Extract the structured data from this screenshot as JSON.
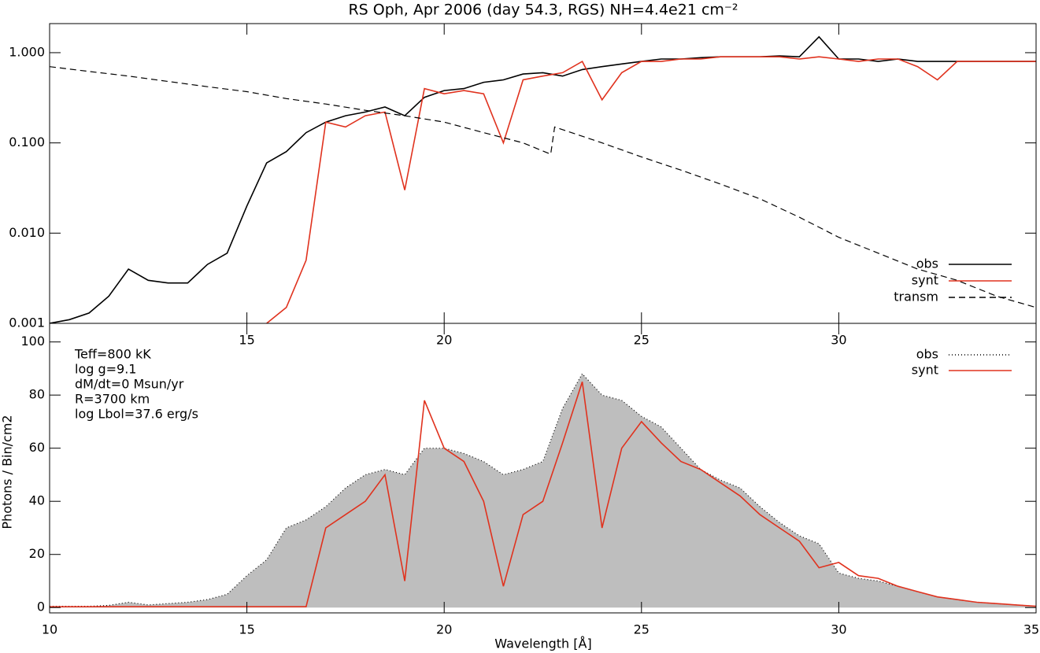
{
  "chart_data": [
    {
      "type": "line",
      "title": "RS Oph, Apr 2006 (day 54.3, RGS)  NH=4.4e21 cm⁻²",
      "log_y": true,
      "legend": "lower right",
      "x": [
        10,
        10.5,
        11,
        11.5,
        12,
        12.5,
        13,
        13.5,
        14,
        14.5,
        15,
        15.5,
        16,
        16.5,
        17,
        17.5,
        18,
        18.5,
        19,
        19.5,
        20,
        20.5,
        21,
        21.5,
        22,
        22.5,
        23,
        23.5,
        24,
        24.5,
        25,
        25.5,
        26,
        26.5,
        27,
        27.5,
        28,
        28.5,
        29,
        29.5,
        30,
        30.5,
        31,
        31.5,
        32,
        32.5,
        33,
        33.5,
        34,
        34.5,
        35
      ],
      "series": [
        {
          "name": "obs",
          "color": "#000000",
          "style": "solid",
          "values": [
            0.001,
            0.0011,
            0.0013,
            0.002,
            0.004,
            0.003,
            0.0028,
            0.0028,
            0.0045,
            0.006,
            0.02,
            0.06,
            0.08,
            0.13,
            0.17,
            0.2,
            0.22,
            0.25,
            0.2,
            0.32,
            0.38,
            0.4,
            0.47,
            0.5,
            0.58,
            0.6,
            0.55,
            0.65,
            0.7,
            0.75,
            0.8,
            0.85,
            0.85,
            0.88,
            0.9,
            0.9,
            0.9,
            0.92,
            0.9,
            1.5,
            0.85,
            0.85,
            0.8,
            0.85,
            0.8,
            0.8,
            0.8,
            0.8,
            0.8,
            0.8,
            0.8
          ]
        },
        {
          "name": "synt",
          "color": "#e0321e",
          "style": "solid",
          "values": [
            null,
            null,
            null,
            null,
            null,
            null,
            null,
            null,
            null,
            null,
            null,
            0.001,
            0.0015,
            0.005,
            0.17,
            0.15,
            0.2,
            0.22,
            0.03,
            0.4,
            0.35,
            0.38,
            0.35,
            0.1,
            0.5,
            0.55,
            0.6,
            0.8,
            0.3,
            0.6,
            0.8,
            0.8,
            0.85,
            0.85,
            0.9,
            0.9,
            0.9,
            0.9,
            0.85,
            0.9,
            0.85,
            0.8,
            0.85,
            0.85,
            0.7,
            0.5,
            0.8,
            0.8,
            0.8,
            0.8,
            0.8
          ]
        },
        {
          "name": "transm",
          "color": "#000000",
          "style": "dashed",
          "x": [
            10,
            11,
            12,
            13,
            14,
            15,
            16,
            17,
            18,
            19,
            20,
            21,
            22,
            22.7,
            22.8,
            24,
            25,
            26,
            27,
            28,
            29,
            30,
            31,
            32,
            33,
            34,
            35
          ],
          "values": [
            0.7,
            0.62,
            0.55,
            0.48,
            0.42,
            0.37,
            0.31,
            0.27,
            0.23,
            0.2,
            0.17,
            0.13,
            0.1,
            0.075,
            0.15,
            0.1,
            0.07,
            0.05,
            0.035,
            0.024,
            0.015,
            0.009,
            0.006,
            0.004,
            0.003,
            0.002,
            0.0015
          ]
        }
      ],
      "xlim": [
        10,
        35
      ],
      "xticks": [
        15,
        20,
        25,
        30
      ],
      "ylim": [
        0.001,
        2.1
      ],
      "yticks": [
        {
          "value": 0.001,
          "label": "0.001"
        },
        {
          "value": 0.01,
          "label": "0.010"
        },
        {
          "value": 0.1,
          "label": "0.100"
        },
        {
          "value": 1,
          "label": "1.000"
        }
      ]
    },
    {
      "type": "area",
      "x_label": "Wavelength [Å]",
      "y_label": "Photons / Bin/cm2",
      "legend": "upper right",
      "annotations": [
        "Teff=800 kK",
        "log g=9.1",
        "dM/dt=0 Msun/yr",
        "R=3700 km",
        "log Lbol=37.6 erg/s"
      ],
      "x": [
        10,
        10.5,
        11,
        11.5,
        12,
        12.5,
        13,
        13.5,
        14,
        14.5,
        15,
        15.5,
        16,
        16.5,
        17,
        17.5,
        18,
        18.5,
        19,
        19.5,
        20,
        20.5,
        21,
        21.5,
        22,
        22.5,
        23,
        23.5,
        24,
        24.5,
        25,
        25.5,
        26,
        26.5,
        27,
        27.5,
        28,
        28.5,
        29,
        29.5,
        30,
        30.5,
        31,
        31.5,
        32,
        32.5,
        33,
        33.5,
        34,
        34.5,
        35
      ],
      "series": [
        {
          "name": "obs",
          "color": "#000000",
          "fill": "#bebebe",
          "style": "dotted",
          "values": [
            0.5,
            0.5,
            0.5,
            0.8,
            2,
            1,
            1.5,
            2,
            3,
            5,
            12,
            18,
            30,
            33,
            38,
            45,
            50,
            52,
            50,
            60,
            60,
            58,
            55,
            50,
            52,
            55,
            75,
            88,
            80,
            78,
            72,
            68,
            60,
            52,
            48,
            45,
            38,
            32,
            27,
            24,
            13,
            11,
            10,
            8,
            6,
            4,
            3,
            2,
            1.5,
            1,
            0.5
          ]
        },
        {
          "name": "synt",
          "color": "#e0321e",
          "style": "solid",
          "values": [
            0.3,
            0.3,
            0.3,
            0.3,
            0.3,
            0.3,
            0.3,
            0.3,
            0.3,
            0.3,
            0.3,
            0.3,
            0.3,
            0.3,
            30,
            35,
            40,
            50,
            10,
            78,
            60,
            55,
            40,
            8,
            35,
            40,
            62,
            85,
            30,
            60,
            70,
            62,
            55,
            52,
            47,
            42,
            35,
            30,
            25,
            15,
            17,
            12,
            11,
            8,
            6,
            4,
            3,
            2,
            1.5,
            1,
            0.5
          ]
        }
      ],
      "xlim": [
        10,
        35
      ],
      "xticks": [
        10,
        15,
        20,
        25,
        30,
        35
      ],
      "ylim": [
        -2,
        107
      ],
      "yticks": [
        0,
        20,
        40,
        60,
        80,
        100
      ]
    }
  ]
}
